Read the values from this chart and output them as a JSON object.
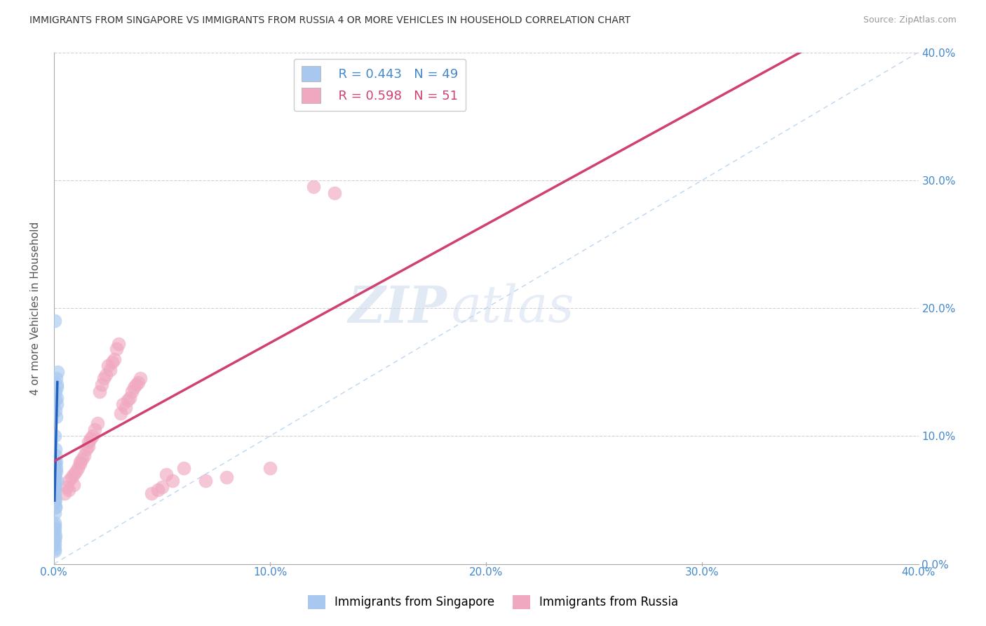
{
  "title": "IMMIGRANTS FROM SINGAPORE VS IMMIGRANTS FROM RUSSIA 4 OR MORE VEHICLES IN HOUSEHOLD CORRELATION CHART",
  "source": "Source: ZipAtlas.com",
  "ylabel": "4 or more Vehicles in Household",
  "xlim": [
    0.0,
    0.4
  ],
  "ylim": [
    0.0,
    0.4
  ],
  "xtick_vals": [
    0.0,
    0.1,
    0.2,
    0.3,
    0.4
  ],
  "ytick_vals": [
    0.0,
    0.1,
    0.2,
    0.3,
    0.4
  ],
  "R_singapore": 0.443,
  "N_singapore": 49,
  "R_russia": 0.598,
  "N_russia": 51,
  "color_singapore": "#a8c8f0",
  "color_russia": "#f0a8c0",
  "line_color_singapore": "#2060c0",
  "line_color_russia": "#d04070",
  "dashed_line_color": "#b0c8e0",
  "watermark_zip": "ZIP",
  "watermark_atlas": "atlas",
  "sg_x": [
    0.0008,
    0.001,
    0.0005,
    0.0012,
    0.0006,
    0.0009,
    0.0004,
    0.0007,
    0.0011,
    0.0003,
    0.0015,
    0.0013,
    0.0016,
    0.0008,
    0.0014,
    0.0007,
    0.001,
    0.0009,
    0.0012,
    0.0006,
    0.0003,
    0.0005,
    0.0004,
    0.0006,
    0.0007,
    0.0004,
    0.0005,
    0.0003,
    0.0004,
    0.0006,
    0.0004,
    0.0003,
    0.0005,
    0.0004,
    0.0006,
    0.0003,
    0.0004,
    0.0005,
    0.0003,
    0.0004,
    0.0005,
    0.0004,
    0.0003,
    0.0005,
    0.0004,
    0.0003,
    0.0004,
    0.0005,
    0.0003
  ],
  "sg_y": [
    0.085,
    0.075,
    0.1,
    0.065,
    0.09,
    0.08,
    0.07,
    0.078,
    0.072,
    0.06,
    0.14,
    0.13,
    0.15,
    0.135,
    0.125,
    0.12,
    0.145,
    0.115,
    0.138,
    0.128,
    0.06,
    0.055,
    0.062,
    0.05,
    0.045,
    0.052,
    0.048,
    0.04,
    0.058,
    0.044,
    0.025,
    0.02,
    0.03,
    0.015,
    0.022,
    0.018,
    0.012,
    0.028,
    0.01,
    0.032,
    0.068,
    0.072,
    0.065,
    0.08,
    0.076,
    0.069,
    0.073,
    0.063,
    0.19
  ],
  "ru_x": [
    0.005,
    0.007,
    0.009,
    0.006,
    0.008,
    0.011,
    0.01,
    0.007,
    0.012,
    0.009,
    0.015,
    0.013,
    0.018,
    0.016,
    0.014,
    0.017,
    0.019,
    0.012,
    0.02,
    0.016,
    0.025,
    0.022,
    0.028,
    0.024,
    0.026,
    0.021,
    0.029,
    0.023,
    0.027,
    0.03,
    0.035,
    0.032,
    0.038,
    0.034,
    0.036,
    0.04,
    0.033,
    0.037,
    0.031,
    0.039,
    0.05,
    0.045,
    0.055,
    0.048,
    0.052,
    0.06,
    0.07,
    0.08,
    0.1,
    0.13,
    0.12
  ],
  "ru_y": [
    0.055,
    0.065,
    0.07,
    0.06,
    0.068,
    0.075,
    0.072,
    0.058,
    0.08,
    0.062,
    0.09,
    0.082,
    0.1,
    0.095,
    0.085,
    0.098,
    0.105,
    0.078,
    0.11,
    0.092,
    0.155,
    0.14,
    0.16,
    0.148,
    0.152,
    0.135,
    0.168,
    0.145,
    0.158,
    0.172,
    0.13,
    0.125,
    0.14,
    0.128,
    0.135,
    0.145,
    0.122,
    0.138,
    0.118,
    0.142,
    0.06,
    0.055,
    0.065,
    0.058,
    0.07,
    0.075,
    0.065,
    0.068,
    0.075,
    0.29,
    0.295
  ],
  "sg_line_x0": 0.0003,
  "sg_line_x1": 0.0016,
  "ru_line_x0": 0.0,
  "ru_line_x1": 0.4
}
